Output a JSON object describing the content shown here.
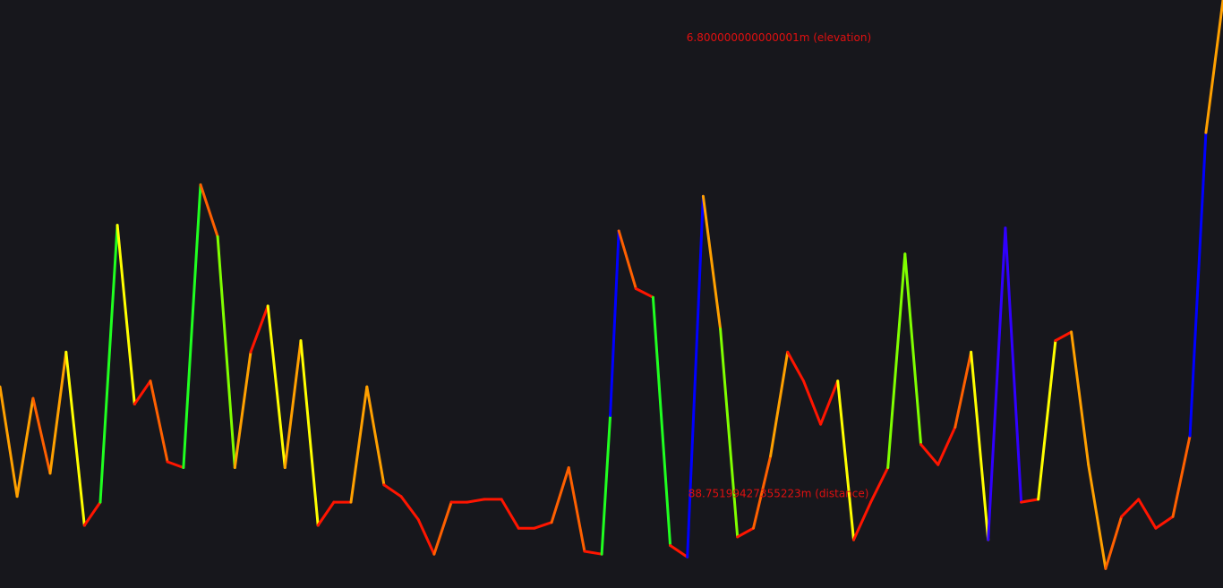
{
  "chart_data": {
    "type": "line",
    "title": "",
    "xlabel": "",
    "ylabel": "",
    "grid": false,
    "legend": "none",
    "xlim": [
      0,
      100
    ],
    "ylim": [
      0,
      100
    ],
    "series": [
      {
        "x": [
          0.0,
          1.4,
          2.7,
          4.1,
          5.4,
          6.9,
          8.2,
          9.6,
          11.0,
          12.3,
          13.7,
          15.0,
          16.4,
          17.8,
          19.2,
          20.5,
          21.9,
          23.3,
          24.6,
          26.0,
          27.3,
          28.7,
          30.0,
          31.4,
          32.8,
          34.2,
          35.5,
          36.9,
          38.2,
          39.6,
          41.0,
          42.4,
          43.7,
          45.1,
          46.5,
          47.8,
          49.2,
          49.9,
          50.6,
          52.0,
          53.4,
          54.8,
          56.2,
          57.5,
          58.9,
          60.3,
          61.6,
          63.0,
          64.4,
          65.7,
          67.1,
          68.5,
          69.8,
          71.2,
          72.6,
          74.0,
          75.3,
          76.7,
          78.1,
          79.4,
          80.8,
          82.2,
          83.5,
          84.9,
          86.3,
          87.6,
          89.0,
          90.4,
          91.7,
          93.1,
          94.5,
          95.9,
          97.3,
          98.6,
          100.0
        ],
        "y": [
          33.0,
          14.0,
          31.0,
          18.0,
          39.0,
          9.0,
          13.0,
          61.0,
          30.0,
          34.0,
          20.0,
          19.0,
          68.0,
          59.0,
          19.0,
          39.0,
          47.0,
          19.0,
          41.0,
          9.0,
          13.0,
          13.0,
          33.0,
          16.0,
          14.0,
          10.0,
          4.0,
          13.0,
          13.0,
          13.5,
          13.5,
          8.5,
          8.5,
          9.5,
          19.0,
          4.5,
          4.0,
          28.0,
          60.0,
          50.0,
          48.5,
          5.5,
          3.5,
          66.0,
          43.0,
          7.0,
          8.5,
          21.0,
          39.0,
          34.0,
          26.5,
          34.0,
          6.5,
          13.0,
          19.0,
          56.0,
          23.0,
          19.5,
          26.0,
          39.0,
          6.5,
          60.5,
          13.0,
          13.5,
          41.0,
          42.5,
          19.5,
          1.5,
          10.5,
          13.5,
          8.5,
          10.5,
          24.5,
          77.0,
          100.0
        ],
        "color_scale": [
          "#ff1500",
          "#ff6000",
          "#ffa000",
          "#ffff00",
          "#80ff00",
          "#20ff20",
          "#3000ff",
          "#0000ff"
        ]
      }
    ],
    "annotations": [
      {
        "text": "6.800000000000001m (elevation)",
        "series_x": 63.6,
        "series_y": 93.5
      },
      {
        "text": "88.75199427355223m (distance)",
        "series_x": 63.6,
        "series_y": 14.5
      }
    ]
  }
}
